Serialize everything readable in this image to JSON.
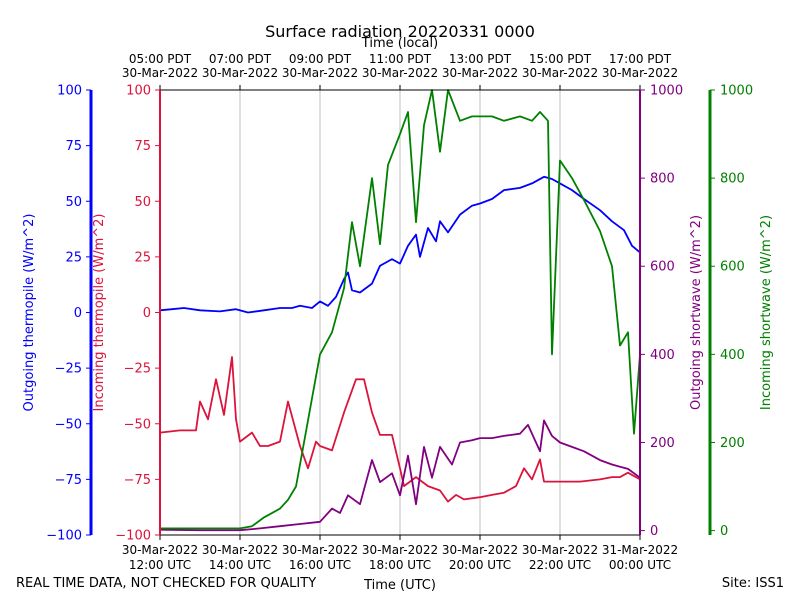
{
  "chart_data": {
    "type": "line",
    "title": "Surface radiation 20220331 0000",
    "top_axis_label": "Time (local)",
    "xlabel": "Time (UTC)",
    "x_ticks_utc": [
      [
        "30-Mar-2022",
        "12:00 UTC"
      ],
      [
        "30-Mar-2022",
        "14:00 UTC"
      ],
      [
        "30-Mar-2022",
        "16:00 UTC"
      ],
      [
        "30-Mar-2022",
        "18:00 UTC"
      ],
      [
        "30-Mar-2022",
        "20:00 UTC"
      ],
      [
        "30-Mar-2022",
        "22:00 UTC"
      ],
      [
        "31-Mar-2022",
        "00:00 UTC"
      ]
    ],
    "x_ticks_local": [
      [
        "05:00 PDT",
        "30-Mar-2022"
      ],
      [
        "07:00 PDT",
        "30-Mar-2022"
      ],
      [
        "09:00 PDT",
        "30-Mar-2022"
      ],
      [
        "11:00 PDT",
        "30-Mar-2022"
      ],
      [
        "13:00 PDT",
        "30-Mar-2022"
      ],
      [
        "15:00 PDT",
        "30-Mar-2022"
      ],
      [
        "17:00 PDT",
        "30-Mar-2022"
      ]
    ],
    "xlim_utc_hours": [
      12,
      24
    ],
    "grid": "vertical",
    "axes": [
      {
        "label": "Outgoing thermopile (W/m^2)",
        "color": "#0000ff",
        "side": "left-outer",
        "ylim": [
          -100,
          100
        ],
        "ticks": [
          100,
          75,
          50,
          25,
          0,
          -25,
          -50,
          -75,
          -100
        ]
      },
      {
        "label": "Incoming thermopile (W/m^2)",
        "color": "#dc143c",
        "side": "left-inner",
        "ylim": [
          -100,
          100
        ],
        "ticks": [
          100,
          75,
          50,
          25,
          0,
          -25,
          -50,
          -75,
          -100
        ]
      },
      {
        "label": "Outgoing shortwave (W/m^2)",
        "color": "#800080",
        "side": "right-inner",
        "ylim": [
          -10,
          1000
        ],
        "ticks": [
          1000,
          800,
          600,
          400,
          200,
          0
        ]
      },
      {
        "label": "Incoming shortwave (W/m^2)",
        "color": "#008000",
        "side": "right-outer",
        "ylim": [
          -10,
          1000
        ],
        "ticks": [
          1000,
          800,
          600,
          400,
          200,
          0
        ]
      }
    ],
    "series": [
      {
        "name": "Outgoing thermopile",
        "axis": 0,
        "color": "#0000ff",
        "points": [
          [
            12.0,
            1
          ],
          [
            12.3,
            1.5
          ],
          [
            12.6,
            2
          ],
          [
            13.0,
            1
          ],
          [
            13.5,
            0.5
          ],
          [
            13.9,
            1.5
          ],
          [
            14.2,
            0
          ],
          [
            14.6,
            1
          ],
          [
            15.0,
            2
          ],
          [
            15.3,
            2
          ],
          [
            15.5,
            3
          ],
          [
            15.8,
            2
          ],
          [
            16.0,
            5
          ],
          [
            16.2,
            3
          ],
          [
            16.4,
            7
          ],
          [
            16.6,
            15
          ],
          [
            16.7,
            18
          ],
          [
            16.8,
            10
          ],
          [
            17.0,
            9
          ],
          [
            17.3,
            13
          ],
          [
            17.5,
            21
          ],
          [
            17.8,
            24
          ],
          [
            18.0,
            22
          ],
          [
            18.2,
            30
          ],
          [
            18.4,
            35
          ],
          [
            18.5,
            25
          ],
          [
            18.7,
            38
          ],
          [
            18.9,
            32
          ],
          [
            19.0,
            41
          ],
          [
            19.2,
            36
          ],
          [
            19.5,
            44
          ],
          [
            19.8,
            48
          ],
          [
            20.0,
            49
          ],
          [
            20.3,
            51
          ],
          [
            20.6,
            55
          ],
          [
            21.0,
            56
          ],
          [
            21.3,
            58
          ],
          [
            21.6,
            61
          ],
          [
            21.8,
            60
          ],
          [
            22.0,
            58
          ],
          [
            22.3,
            55
          ],
          [
            22.6,
            51
          ],
          [
            23.0,
            46
          ],
          [
            23.3,
            41
          ],
          [
            23.6,
            37
          ],
          [
            23.8,
            30
          ],
          [
            24.0,
            27
          ]
        ]
      },
      {
        "name": "Incoming thermopile",
        "axis": 1,
        "color": "#dc143c",
        "points": [
          [
            12.0,
            -54
          ],
          [
            12.5,
            -53
          ],
          [
            12.9,
            -53
          ],
          [
            13.0,
            -40
          ],
          [
            13.2,
            -48
          ],
          [
            13.4,
            -30
          ],
          [
            13.6,
            -46
          ],
          [
            13.8,
            -20
          ],
          [
            13.9,
            -48
          ],
          [
            14.0,
            -58
          ],
          [
            14.3,
            -54
          ],
          [
            14.5,
            -60
          ],
          [
            14.7,
            -60
          ],
          [
            15.0,
            -58
          ],
          [
            15.2,
            -40
          ],
          [
            15.5,
            -60
          ],
          [
            15.7,
            -70
          ],
          [
            15.9,
            -58
          ],
          [
            16.0,
            -60
          ],
          [
            16.3,
            -62
          ],
          [
            16.6,
            -45
          ],
          [
            16.9,
            -30
          ],
          [
            17.1,
            -30
          ],
          [
            17.3,
            -45
          ],
          [
            17.5,
            -55
          ],
          [
            17.8,
            -55
          ],
          [
            18.0,
            -70
          ],
          [
            18.1,
            -78
          ],
          [
            18.4,
            -74
          ],
          [
            18.7,
            -78
          ],
          [
            19.0,
            -80
          ],
          [
            19.2,
            -85
          ],
          [
            19.4,
            -82
          ],
          [
            19.6,
            -84
          ],
          [
            20.0,
            -83
          ],
          [
            20.3,
            -82
          ],
          [
            20.6,
            -81
          ],
          [
            20.9,
            -78
          ],
          [
            21.1,
            -70
          ],
          [
            21.3,
            -75
          ],
          [
            21.5,
            -66
          ],
          [
            21.6,
            -76
          ],
          [
            22.0,
            -76
          ],
          [
            22.5,
            -76
          ],
          [
            23.0,
            -75
          ],
          [
            23.3,
            -74
          ],
          [
            23.5,
            -74
          ],
          [
            23.7,
            -72
          ],
          [
            24.0,
            -75
          ]
        ]
      },
      {
        "name": "Outgoing shortwave",
        "axis": 2,
        "color": "#800080",
        "points": [
          [
            12.0,
            2
          ],
          [
            13.0,
            1
          ],
          [
            14.0,
            1
          ],
          [
            14.5,
            5
          ],
          [
            15.0,
            10
          ],
          [
            15.5,
            15
          ],
          [
            16.0,
            20
          ],
          [
            16.3,
            50
          ],
          [
            16.5,
            40
          ],
          [
            16.7,
            80
          ],
          [
            17.0,
            60
          ],
          [
            17.3,
            160
          ],
          [
            17.5,
            110
          ],
          [
            17.8,
            130
          ],
          [
            18.0,
            80
          ],
          [
            18.2,
            170
          ],
          [
            18.4,
            60
          ],
          [
            18.6,
            190
          ],
          [
            18.8,
            120
          ],
          [
            19.0,
            190
          ],
          [
            19.3,
            150
          ],
          [
            19.5,
            200
          ],
          [
            19.8,
            205
          ],
          [
            20.0,
            210
          ],
          [
            20.3,
            210
          ],
          [
            20.6,
            215
          ],
          [
            21.0,
            220
          ],
          [
            21.2,
            240
          ],
          [
            21.4,
            200
          ],
          [
            21.5,
            180
          ],
          [
            21.6,
            250
          ],
          [
            21.8,
            215
          ],
          [
            22.0,
            200
          ],
          [
            22.3,
            190
          ],
          [
            22.6,
            180
          ],
          [
            23.0,
            160
          ],
          [
            23.3,
            150
          ],
          [
            23.5,
            145
          ],
          [
            23.7,
            140
          ],
          [
            24.0,
            120
          ]
        ]
      },
      {
        "name": "Incoming shortwave",
        "axis": 3,
        "color": "#008000",
        "points": [
          [
            12.0,
            5
          ],
          [
            13.0,
            5
          ],
          [
            14.0,
            5
          ],
          [
            14.3,
            10
          ],
          [
            14.6,
            30
          ],
          [
            15.0,
            50
          ],
          [
            15.2,
            70
          ],
          [
            15.4,
            100
          ],
          [
            15.6,
            200
          ],
          [
            15.8,
            300
          ],
          [
            16.0,
            400
          ],
          [
            16.3,
            450
          ],
          [
            16.6,
            550
          ],
          [
            16.8,
            700
          ],
          [
            17.0,
            600
          ],
          [
            17.3,
            800
          ],
          [
            17.5,
            650
          ],
          [
            17.7,
            830
          ],
          [
            18.0,
            900
          ],
          [
            18.2,
            950
          ],
          [
            18.4,
            700
          ],
          [
            18.6,
            920
          ],
          [
            18.8,
            1000
          ],
          [
            19.0,
            860
          ],
          [
            19.2,
            1000
          ],
          [
            19.5,
            930
          ],
          [
            19.8,
            940
          ],
          [
            20.0,
            940
          ],
          [
            20.3,
            940
          ],
          [
            20.6,
            930
          ],
          [
            21.0,
            940
          ],
          [
            21.3,
            930
          ],
          [
            21.5,
            950
          ],
          [
            21.7,
            930
          ],
          [
            21.8,
            400
          ],
          [
            22.0,
            840
          ],
          [
            22.3,
            800
          ],
          [
            22.6,
            750
          ],
          [
            23.0,
            680
          ],
          [
            23.3,
            600
          ],
          [
            23.5,
            420
          ],
          [
            23.7,
            450
          ],
          [
            23.85,
            220
          ],
          [
            24.0,
            400
          ]
        ]
      }
    ]
  },
  "footer": {
    "left": "REAL TIME DATA, NOT CHECKED FOR QUALITY",
    "right": "Site: ISS1"
  }
}
